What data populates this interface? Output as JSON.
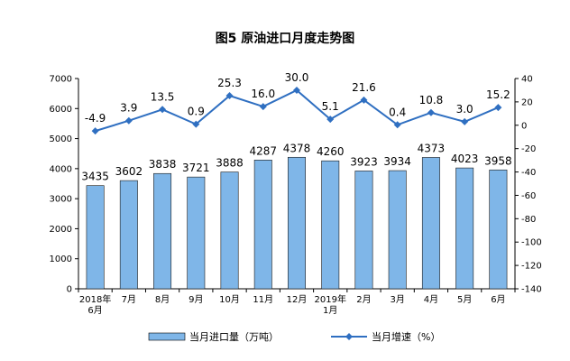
{
  "chart_data": {
    "type": "bar+line",
    "title": "图5 原油进口月度走势图",
    "categories": [
      [
        "2018年",
        "6月"
      ],
      [
        "7月"
      ],
      [
        "8月"
      ],
      [
        "9月"
      ],
      [
        "10月"
      ],
      [
        "11月"
      ],
      [
        "12月"
      ],
      [
        "2019年",
        "1月"
      ],
      [
        "2月"
      ],
      [
        "3月"
      ],
      [
        "4月"
      ],
      [
        "5月"
      ],
      [
        "6月"
      ]
    ],
    "series": [
      {
        "name": "当月进口量（万吨）",
        "type": "bar",
        "axis": "left",
        "color": "#7fb6e8",
        "values": [
          3435,
          3602,
          3838,
          3721,
          3888,
          4287,
          4378,
          4260,
          3923,
          3934,
          4373,
          4023,
          3958
        ],
        "labels": [
          "3435",
          "3602",
          "3838",
          "3721",
          "3888",
          "4287",
          "4378",
          "4260",
          "3923",
          "3934",
          "4373",
          "4023",
          "3958"
        ]
      },
      {
        "name": "当月增速（%）",
        "type": "line",
        "axis": "right",
        "color": "#2f6fc1",
        "values": [
          -4.9,
          3.9,
          13.5,
          0.9,
          25.3,
          16.0,
          30.0,
          5.1,
          21.6,
          0.4,
          10.8,
          3.0,
          15.2
        ],
        "labels": [
          "-4.9",
          "3.9",
          "13.5",
          "0.9",
          "25.3",
          "16.0",
          "30.0",
          "5.1",
          "21.6",
          "0.4",
          "10.8",
          "3.0",
          "15.2"
        ]
      }
    ],
    "left_axis": {
      "ylim": [
        0,
        7000
      ],
      "ticks": [
        "0",
        "1000",
        "2000",
        "3000",
        "4000",
        "5000",
        "6000",
        "7000"
      ]
    },
    "right_axis": {
      "ylim": [
        -140,
        40
      ],
      "ticks": [
        "-140",
        "-120",
        "-100",
        "-80",
        "-60",
        "-40",
        "-20",
        "0",
        "20",
        "40"
      ]
    },
    "grid": false,
    "legend_position": "bottom"
  }
}
